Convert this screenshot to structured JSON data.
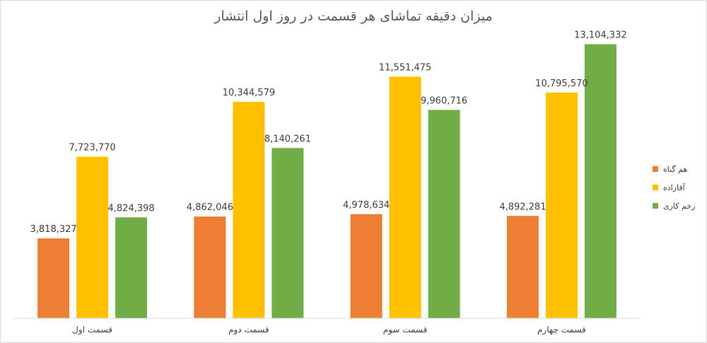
{
  "chart_data": {
    "type": "bar",
    "title": "میزان دقیقه تماشای هر قسمت در روز اول انتشار",
    "categories": [
      "قسمت اول",
      "قسمت دوم",
      "قسمت سوم",
      "قسمت چهارم"
    ],
    "series": [
      {
        "name": "هم گناه",
        "color": "#ed7d31",
        "values": [
          3818327,
          4862046,
          4978634,
          4892281
        ]
      },
      {
        "name": "آقازاده",
        "color": "#ffc000",
        "values": [
          7723770,
          10344579,
          11551475,
          10795570
        ]
      },
      {
        "name": "زخم کاری",
        "color": "#70ad47",
        "values": [
          4824398,
          8140261,
          9960716,
          13104332
        ]
      }
    ],
    "value_labels": [
      [
        "3,818,327",
        "4,862,046",
        "4,978,634",
        "4,892,281"
      ],
      [
        "7,723,770",
        "10,344,579",
        "11,551,475",
        "10,795,570"
      ],
      [
        "4,824,398",
        "8,140,261",
        "9,960,716",
        "13,104,332"
      ]
    ],
    "ylim": [
      0,
      14000000
    ],
    "grid": false,
    "legend_position": "right"
  }
}
